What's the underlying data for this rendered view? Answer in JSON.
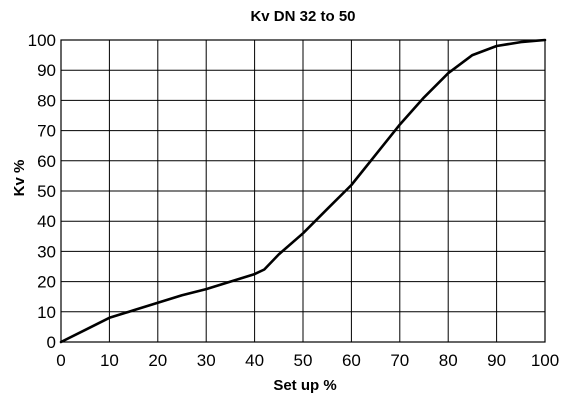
{
  "chart_data": {
    "type": "line",
    "title": "Kv  DN 32 to 50",
    "xlabel": "Set up %",
    "ylabel": "Kv %",
    "xlim": [
      0,
      100
    ],
    "ylim": [
      0,
      100
    ],
    "xticks": [
      0,
      10,
      20,
      30,
      40,
      50,
      60,
      70,
      80,
      90,
      100
    ],
    "yticks": [
      0,
      10,
      20,
      30,
      40,
      50,
      60,
      70,
      80,
      90,
      100
    ],
    "grid": true,
    "series": [
      {
        "x": [
          0,
          5,
          10,
          15,
          20,
          25,
          30,
          35,
          40,
          42,
          45,
          50,
          55,
          60,
          65,
          70,
          75,
          80,
          85,
          90,
          95,
          100
        ],
        "y": [
          0,
          4,
          8,
          10.5,
          13,
          15.5,
          17.5,
          20,
          22.5,
          24,
          29,
          36,
          44,
          52,
          62,
          72,
          81,
          89,
          95,
          98,
          99.3,
          100
        ]
      }
    ]
  }
}
